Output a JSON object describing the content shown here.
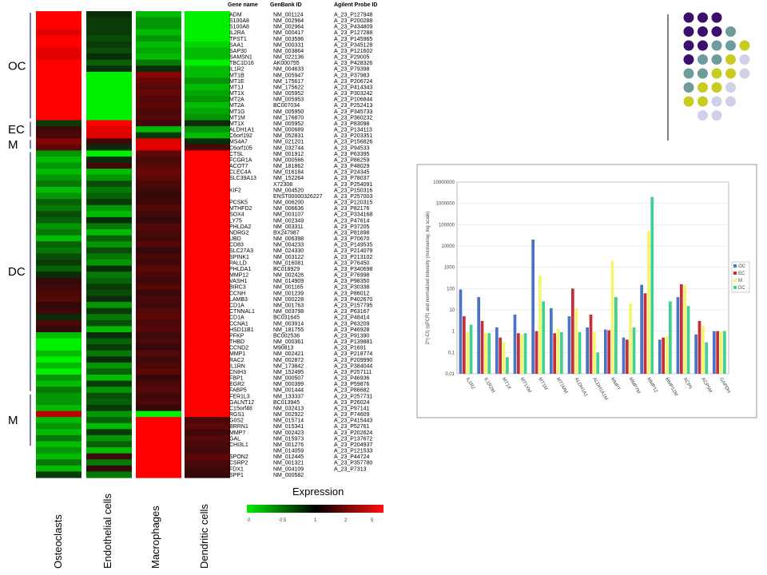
{
  "heatmap": {
    "columns": [
      "Osteoclasts",
      "Endothelial cells",
      "Macrophages",
      "Dendritic cells"
    ],
    "table_headers": [
      "Gene name",
      "GenBank ID",
      "Agilent Probe ID"
    ],
    "groups": [
      {
        "label": "OC",
        "start": 0,
        "end": 17
      },
      {
        "label": "EC",
        "start": 18,
        "end": 20
      },
      {
        "label": "M",
        "start": 21,
        "end": 22
      },
      {
        "label": "DC",
        "start": 23,
        "end": 62
      },
      {
        "label": "M",
        "start": 63,
        "end": 71
      }
    ],
    "rows": [
      {
        "gene": "ADM",
        "genbank": "NM_001124",
        "probe": "A_23_P127948",
        "v": [
          5,
          0.9,
          0.3,
          0.1
        ]
      },
      {
        "gene": "S100A8",
        "genbank": "NM_002964",
        "probe": "A_23_P200288",
        "v": [
          5,
          0.8,
          0.4,
          0.1
        ]
      },
      {
        "gene": "S100A8",
        "genbank": "NM_002964",
        "probe": "A_23_P434809",
        "v": [
          5,
          0.8,
          0.4,
          0.15
        ]
      },
      {
        "gene": "IL2RA",
        "genbank": "NM_000417",
        "probe": "A_23_P127288",
        "v": [
          4,
          0.8,
          0.3,
          0.2
        ]
      },
      {
        "gene": "TPST1",
        "genbank": "NM_003596",
        "probe": "A_23_P145965",
        "v": [
          5,
          0.7,
          0.4,
          0.2
        ]
      },
      {
        "gene": "SAA1",
        "genbank": "NM_000331",
        "probe": "A_23_P345128",
        "v": [
          5,
          0.8,
          0.3,
          0.25
        ]
      },
      {
        "gene": "SAP30",
        "genbank": "NM_003864",
        "probe": "A_23_P121602",
        "v": [
          4,
          0.7,
          0.35,
          0.3
        ]
      },
      {
        "gene": "SAMSN1",
        "genbank": "NM_022136",
        "probe": "A_23_P29005",
        "v": [
          4,
          0.9,
          0.3,
          0.3
        ]
      },
      {
        "gene": "TBC1D16",
        "genbank": "AK000755",
        "probe": "A_23_P428326",
        "v": [
          5,
          0.6,
          0.5,
          0.2
        ]
      },
      {
        "gene": "IL1R2",
        "genbank": "NM_004633",
        "probe": "A_23_P79398",
        "v": [
          5,
          0.9,
          0.9,
          0.3
        ]
      },
      {
        "gene": "MT1B",
        "genbank": "NM_005947",
        "probe": "A_23_P37983",
        "v": [
          5,
          0.2,
          2,
          0.3
        ]
      },
      {
        "gene": "MT1E",
        "genbank": "NM_175617",
        "probe": "A_23_P206724",
        "v": [
          5,
          0.2,
          1.6,
          0.4
        ]
      },
      {
        "gene": "MT1J",
        "genbank": "NM_175622",
        "probe": "A_23_P414343",
        "v": [
          5,
          0.15,
          1.4,
          0.3
        ]
      },
      {
        "gene": "MT1X",
        "genbank": "NM_005952",
        "probe": "A_23_P303242",
        "v": [
          5,
          0.15,
          1.6,
          0.35
        ]
      },
      {
        "gene": "MT2A",
        "genbank": "NM_005953",
        "probe": "A_23_P106844",
        "v": [
          5,
          0.2,
          1.4,
          0.4
        ]
      },
      {
        "gene": "MT2A",
        "genbank": "BC007034",
        "probe": "A_23_P252413",
        "v": [
          5,
          0.2,
          1.5,
          0.3
        ]
      },
      {
        "gene": "MT1G",
        "genbank": "NM_005950",
        "probe": "A_23_P345733",
        "v": [
          5,
          0.2,
          1.3,
          0.35
        ]
      },
      {
        "gene": "MT1M",
        "genbank": "NM_176870",
        "probe": "A_23_P360232",
        "v": [
          5,
          0.15,
          1.4,
          0.4
        ]
      },
      {
        "gene": "MT1X",
        "genbank": "NM_005952",
        "probe": "A_23_P83098",
        "v": [
          0.8,
          5,
          1.2,
          0.9
        ]
      },
      {
        "gene": "ALDH1A1",
        "genbank": "NM_000689",
        "probe": "A_23_P134113",
        "v": [
          1.2,
          4,
          0.3,
          0.4
        ]
      },
      {
        "gene": "C6orf192",
        "genbank": "NM_052831",
        "probe": "A_23_P203351",
        "v": [
          1.3,
          4,
          0.8,
          0.3
        ]
      },
      {
        "gene": "MS4A7",
        "genbank": "NM_021201",
        "probe": "A_23_P156826",
        "v": [
          2,
          1.2,
          4,
          0.9
        ]
      },
      {
        "gene": "C6orf105",
        "genbank": "NM_032744",
        "probe": "A_23_P94533",
        "v": [
          1.5,
          0.9,
          4,
          1.3
        ]
      },
      {
        "gene": "CTSL",
        "genbank": "NM_001912",
        "probe": "A_23_P63395",
        "v": [
          0.4,
          0.2,
          1.5,
          5
        ]
      },
      {
        "gene": "FCGR1A",
        "genbank": "NM_000566",
        "probe": "A_23_P86259",
        "v": [
          0.3,
          0.9,
          1.3,
          5
        ]
      },
      {
        "gene": "ACOT7",
        "genbank": "NM_181862",
        "probe": "A_23_P48029",
        "v": [
          0.4,
          1.2,
          1.4,
          5
        ]
      },
      {
        "gene": "CLEC4A",
        "genbank": "NM_016184",
        "probe": "A_23_P24345",
        "v": [
          0.3,
          0.3,
          1.6,
          5
        ]
      },
      {
        "gene": "SLC39A13",
        "genbank": "NM_152264",
        "probe": "A_23_P78037",
        "v": [
          0.4,
          0.4,
          1.5,
          5
        ]
      },
      {
        "gene": "",
        "genbank": "X72308",
        "probe": "A_23_P254091",
        "v": [
          0.5,
          0.7,
          1.3,
          5
        ]
      },
      {
        "gene": "KIF2",
        "genbank": "NM_004520",
        "probe": "A_23_P150316",
        "v": [
          0.3,
          0.5,
          1.2,
          5
        ]
      },
      {
        "gene": "",
        "genbank": "ENST00000326227",
        "probe": "A_23_P257003",
        "v": [
          0.4,
          0.6,
          1.1,
          5
        ]
      },
      {
        "gene": "PCSK5",
        "genbank": "NM_006200",
        "probe": "A_23_P120315",
        "v": [
          0.6,
          0.8,
          1.2,
          5
        ]
      },
      {
        "gene": "MTHFD2",
        "genbank": "NM_006636",
        "probe": "A_23_P82176",
        "v": [
          0.5,
          0.4,
          1.4,
          5
        ]
      },
      {
        "gene": "SOX4",
        "genbank": "NM_003107",
        "probe": "A_23_P334168",
        "v": [
          0.7,
          0.3,
          1.2,
          5
        ]
      },
      {
        "gene": "LY75",
        "genbank": "NM_002349",
        "probe": "A_23_P47614",
        "v": [
          0.6,
          0.9,
          1.1,
          5
        ]
      },
      {
        "gene": "PHLDA2",
        "genbank": "NM_003311",
        "probe": "A_23_P37205",
        "v": [
          0.4,
          0.5,
          1.4,
          5
        ]
      },
      {
        "gene": "NDRG2",
        "genbank": "BX247987",
        "probe": "A_23_P81898",
        "v": [
          0.5,
          0.3,
          1.3,
          5
        ]
      },
      {
        "gene": "UBD",
        "genbank": "NM_006398",
        "probe": "A_23_P70670",
        "v": [
          0.3,
          0.6,
          1.2,
          5
        ]
      },
      {
        "gene": "CD83",
        "genbank": "NM_004233",
        "probe": "A_23_P149535",
        "v": [
          0.6,
          0.4,
          1.4,
          5
        ]
      },
      {
        "gene": "SLC27A3",
        "genbank": "NM_024330",
        "probe": "A_23_P214079",
        "v": [
          0.5,
          0.7,
          1.1,
          5
        ]
      },
      {
        "gene": "SPINK1",
        "genbank": "NM_003122",
        "probe": "A_23_P213102",
        "v": [
          0.7,
          0.5,
          1.3,
          5
        ]
      },
      {
        "gene": "PALLD",
        "genbank": "NM_016081",
        "probe": "A_23_P76450",
        "v": [
          0.8,
          0.4,
          1.2,
          5
        ]
      },
      {
        "gene": "PHLDA1",
        "genbank": "BC018929",
        "probe": "A_23_P340698",
        "v": [
          0.6,
          0.9,
          1.5,
          5
        ]
      },
      {
        "gene": "MMP12",
        "genbank": "NM_002426",
        "probe": "A_23_P76998",
        "v": [
          0.9,
          0.5,
          1.3,
          5
        ]
      },
      {
        "gene": "VASH1",
        "genbank": "NM_014909",
        "probe": "A_23_P98350",
        "v": [
          1.1,
          0.6,
          1.2,
          5
        ]
      },
      {
        "gene": "BIRC3",
        "genbank": "NM_001165",
        "probe": "A_23_P30338",
        "v": [
          1.2,
          0.8,
          1.4,
          5
        ]
      },
      {
        "gene": "CCNH",
        "genbank": "NM_001239",
        "probe": "A_23_P86012",
        "v": [
          1.3,
          0.7,
          1.1,
          5
        ]
      },
      {
        "gene": "LAMB3",
        "genbank": "NM_000228",
        "probe": "A_23_P402670",
        "v": [
          1.4,
          0.9,
          1.3,
          5
        ]
      },
      {
        "gene": "CD1A",
        "genbank": "NM_001763",
        "probe": "A_23_P157795",
        "v": [
          1.1,
          0.4,
          1.2,
          5
        ]
      },
      {
        "gene": "CTNNAL1",
        "genbank": "NM_003798",
        "probe": "A_23_P63167",
        "v": [
          1.2,
          0.8,
          1.4,
          5
        ]
      },
      {
        "gene": "CD1A",
        "genbank": "BC031645",
        "probe": "A_23_P48414",
        "v": [
          0.9,
          0.5,
          1.5,
          5
        ]
      },
      {
        "gene": "CCNA1",
        "genbank": "NM_003914",
        "probe": "A_23_P63209",
        "v": [
          1.3,
          0.7,
          1.3,
          5
        ]
      },
      {
        "gene": "HSD11B1",
        "genbank": "NM_181755",
        "probe": "A_23_P46928",
        "v": [
          1.1,
          0.3,
          1.4,
          5
        ]
      },
      {
        "gene": "PFKP",
        "genbank": "BC002536",
        "probe": "A_23_P91390",
        "v": [
          0.3,
          0.9,
          1.2,
          5
        ]
      },
      {
        "gene": "THBD",
        "genbank": "NM_000361",
        "probe": "A_23_P139881",
        "v": [
          0.2,
          0.6,
          1.3,
          5
        ]
      },
      {
        "gene": "CCND2",
        "genbank": "M90813",
        "probe": "A_23_P1691",
        "v": [
          0.2,
          0.8,
          1.1,
          5
        ]
      },
      {
        "gene": "MMP1",
        "genbank": "NM_002421",
        "probe": "A_23_P218774",
        "v": [
          0.3,
          0.5,
          1.4,
          5
        ]
      },
      {
        "gene": "RAC2",
        "genbank": "NM_002872",
        "probe": "A_23_P209990",
        "v": [
          0.2,
          0.9,
          1.2,
          5
        ]
      },
      {
        "gene": "IL1RN",
        "genbank": "NM_173842",
        "probe": "A_23_P384044",
        "v": [
          0.3,
          0.4,
          1.3,
          5
        ]
      },
      {
        "gene": "CNIH3",
        "genbank": "NM_152495",
        "probe": "A_23_P257111",
        "v": [
          0.2,
          0.6,
          1.5,
          5
        ]
      },
      {
        "gene": "FBP1",
        "genbank": "NM_000507",
        "probe": "A_23_P46936",
        "v": [
          0.4,
          0.3,
          1.1,
          5
        ]
      },
      {
        "gene": "EGR2",
        "genbank": "NM_000399",
        "probe": "A_23_P59876",
        "v": [
          0.3,
          0.8,
          1.3,
          5
        ]
      },
      {
        "gene": "FABP5",
        "genbank": "NM_001444",
        "probe": "A_23_P86682",
        "v": [
          0.5,
          0.4,
          1.4,
          5
        ]
      },
      {
        "gene": "FER1L3",
        "genbank": "NM_133337",
        "probe": "A_23_P257731",
        "v": [
          0.4,
          0.7,
          1.2,
          5
        ]
      },
      {
        "gene": "GALNT12",
        "genbank": "BC013945",
        "probe": "A_23_P26024",
        "v": [
          0.4,
          0.6,
          1.3,
          5
        ]
      },
      {
        "gene": "C15orf48",
        "genbank": "NM_032413",
        "probe": "A_23_P97141",
        "v": [
          0.3,
          0.8,
          1.1,
          5
        ]
      },
      {
        "gene": "RGS1",
        "genbank": "NM_002922",
        "probe": "A_23_P74609",
        "v": [
          3,
          0.4,
          0.2,
          5
        ]
      },
      {
        "gene": "G0S2",
        "genbank": "NM_015714",
        "probe": "A_23_P415443",
        "v": [
          0.3,
          0.6,
          5,
          1.3
        ]
      },
      {
        "gene": "BRRN1",
        "genbank": "NM_015341",
        "probe": "A_23_P52761",
        "v": [
          0.4,
          0.3,
          5,
          1.5
        ]
      },
      {
        "gene": "MMP7",
        "genbank": "NM_002423",
        "probe": "A_23_P202624",
        "v": [
          0.3,
          0.8,
          5,
          1.2
        ]
      },
      {
        "gene": "GAL",
        "genbank": "NM_015973",
        "probe": "A_23_P137672",
        "v": [
          0.5,
          0.4,
          5,
          1.4
        ]
      },
      {
        "gene": "CHI3L1",
        "genbank": "NM_001276",
        "probe": "A_23_P204937",
        "v": [
          0.3,
          0.6,
          5,
          1.3
        ]
      },
      {
        "gene": "",
        "genbank": "NM_014059",
        "probe": "A_23_P121533",
        "v": [
          0.4,
          0.3,
          5,
          1.2
        ]
      },
      {
        "gene": "SPON2",
        "genbank": "NM_012445",
        "probe": "A_23_P44724",
        "v": [
          0.3,
          1.2,
          5,
          1.5
        ]
      },
      {
        "gene": "CSRP2",
        "genbank": "NM_001321",
        "probe": "A_23_P357780",
        "v": [
          0.5,
          0.5,
          5,
          1.3
        ]
      },
      {
        "gene": "FDX1",
        "genbank": "NM_004109",
        "probe": "A_23_P7313",
        "v": [
          0.3,
          1.1,
          5,
          1.2
        ]
      },
      {
        "gene": "SPP1",
        "genbank": "NM_000582",
        "probe": "",
        "v": [
          0.8,
          0.5,
          5,
          1.1
        ]
      }
    ],
    "legend": {
      "title": "Expression",
      "ticks": [
        "0",
        "0.5",
        "1",
        "2",
        "5"
      ],
      "low_color": "#00ee00",
      "mid_color": "#000000",
      "high_color": "#ff1010"
    }
  },
  "dots": {
    "colors": {
      "purple": "#3b0f6b",
      "teal": "#6e9c9c",
      "yellow": "#c8cc20",
      "lavender": "#d0d0e8"
    },
    "rows": [
      [
        "purple",
        "purple",
        "purple"
      ],
      [
        "purple",
        "purple",
        "purple",
        "teal"
      ],
      [
        "purple",
        "purple",
        "teal",
        "teal",
        "yellow"
      ],
      [
        "purple",
        "teal",
        "teal",
        "yellow",
        "lavender"
      ],
      [
        "teal",
        "teal",
        "yellow",
        "yellow",
        "lavender"
      ],
      [
        "teal",
        "yellow",
        "yellow",
        "lavender"
      ],
      [
        "yellow",
        "yellow",
        "lavender",
        "lavender"
      ],
      [
        "lavender",
        "lavender"
      ]
    ]
  },
  "chart_data": {
    "type": "bar",
    "ylabel": "2^(-Ct) (qPCR) and normalized intensity (microarray, log scale)",
    "yscale": "log",
    "ylim": [
      0.01,
      10000000
    ],
    "yticks": [
      "0,01",
      "0,1",
      "1",
      "10",
      "100",
      "1000",
      "10000",
      "100000",
      "1000000",
      "10000000"
    ],
    "categories": [
      "IL1R2",
      "IL1R2M",
      "MT1X",
      "MT1XM",
      "MT1M",
      "MT1MM",
      "ALDH1A1",
      "ALDH1A1M",
      "MMP7",
      "MMP7M",
      "MMP12",
      "MMP12M",
      "ACP5",
      "ACP5M",
      "GAPDH"
    ],
    "legend_position": "right",
    "series": [
      {
        "name": "OC",
        "color": "#4a74c4",
        "values": [
          90,
          40,
          1.5,
          6,
          20000,
          12,
          5,
          1.5,
          1.2,
          0.5,
          150,
          0.4,
          40,
          0.7,
          1
        ]
      },
      {
        "name": "EC",
        "color": "#c4303a",
        "values": [
          5,
          3,
          0.5,
          0.8,
          1,
          0.8,
          100,
          6,
          1.1,
          0.4,
          60,
          0.5,
          160,
          3,
          1
        ]
      },
      {
        "name": "M",
        "color": "#f4f470",
        "values": [
          0.9,
          0.8,
          0.3,
          0.7,
          400,
          1.3,
          12,
          0.9,
          2000,
          20,
          50000,
          0.6,
          150,
          1.8,
          1
        ]
      },
      {
        "name": "DC",
        "color": "#40d090",
        "values": [
          2,
          0.8,
          0.06,
          0.8,
          25,
          0.9,
          0.9,
          0.1,
          40,
          1.5,
          2000000,
          25,
          15,
          0.3,
          1
        ]
      }
    ]
  }
}
